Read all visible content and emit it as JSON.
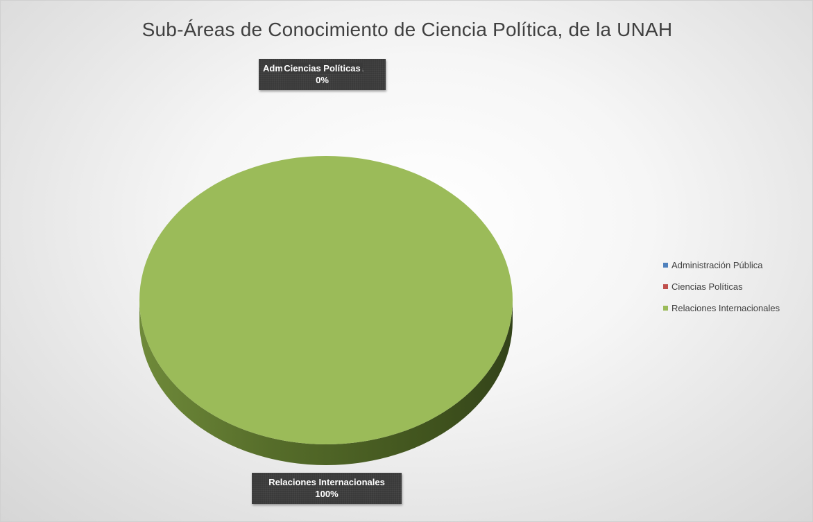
{
  "chart_data": {
    "type": "pie",
    "title": "Sub-Áreas de Conocimiento de Ciencia Política, de la UNAH",
    "categories": [
      "Administración Pública",
      "Ciencias Políticas",
      "Relaciones Internacionales"
    ],
    "values": [
      0,
      0,
      1
    ],
    "colors": [
      "#4f81bd",
      "#c0504d",
      "#9bbb59"
    ],
    "style": "3d-pie",
    "legend_position": "right",
    "data_labels": [
      {
        "category_visible": "Ciencias Políticas",
        "category_obscured": "Administración Pública",
        "value": "0%"
      },
      {
        "category": "Relaciones Internacionales",
        "value": "100%"
      }
    ]
  }
}
